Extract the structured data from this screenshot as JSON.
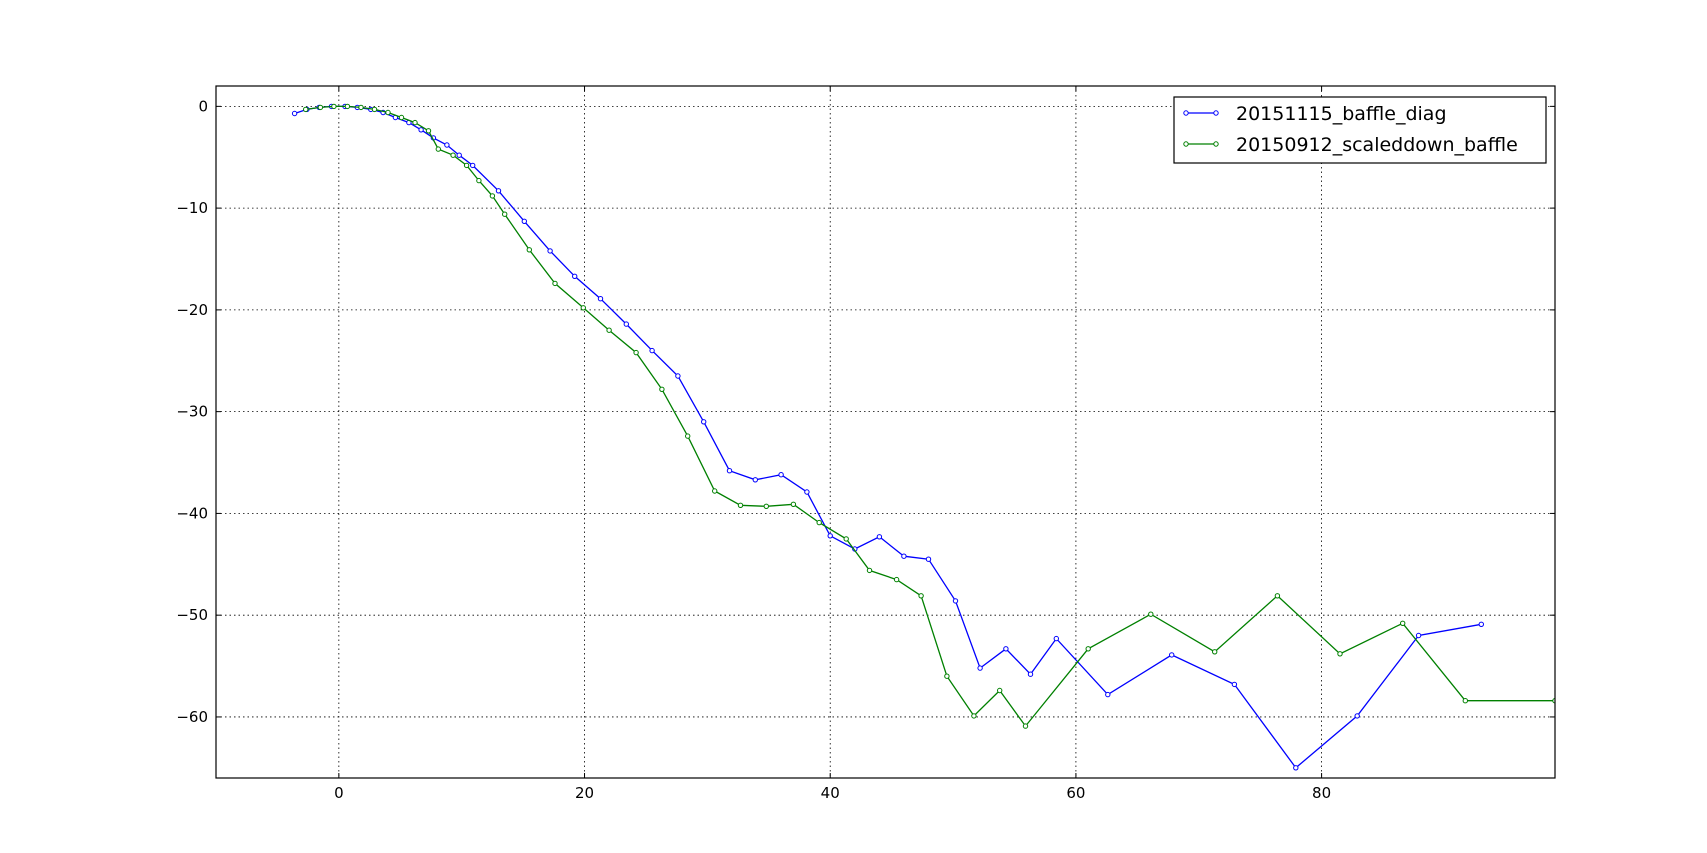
{
  "chart_data": {
    "type": "line",
    "title": "",
    "xlabel": "",
    "ylabel": "",
    "xlim": [
      -10,
      99
    ],
    "ylim": [
      -66,
      2
    ],
    "xticks": [
      0,
      20,
      40,
      60,
      80
    ],
    "yticks": [
      0,
      -10,
      -20,
      -30,
      -40,
      -50,
      -60
    ],
    "xtick_labels": [
      "0",
      "20",
      "40",
      "60",
      "80"
    ],
    "ytick_labels": [
      "0",
      "−10",
      "−20",
      "−30",
      "−40",
      "−50",
      "−60"
    ],
    "grid": true,
    "legend_position": "top-right",
    "series": [
      {
        "name": "20151115_baffle_diag",
        "color": "#0000ff",
        "points": [
          [
            -3.6,
            -0.7
          ],
          [
            -2.6,
            -0.3
          ],
          [
            -1.6,
            -0.1
          ],
          [
            -0.6,
            0.0
          ],
          [
            0.5,
            0.0
          ],
          [
            1.5,
            -0.1
          ],
          [
            2.6,
            -0.3
          ],
          [
            3.6,
            -0.6
          ],
          [
            4.6,
            -1.1
          ],
          [
            5.7,
            -1.6
          ],
          [
            6.7,
            -2.3
          ],
          [
            7.7,
            -3.1
          ],
          [
            8.8,
            -3.8
          ],
          [
            9.8,
            -4.8
          ],
          [
            10.9,
            -5.8
          ],
          [
            13.0,
            -8.3
          ],
          [
            15.1,
            -11.3
          ],
          [
            17.2,
            -14.2
          ],
          [
            19.2,
            -16.7
          ],
          [
            21.3,
            -18.9
          ],
          [
            23.4,
            -21.4
          ],
          [
            25.5,
            -24.0
          ],
          [
            27.6,
            -26.5
          ],
          [
            29.7,
            -31.0
          ],
          [
            31.8,
            -35.8
          ],
          [
            33.9,
            -36.7
          ],
          [
            36.0,
            -36.2
          ],
          [
            38.1,
            -37.9
          ],
          [
            40.0,
            -42.2
          ],
          [
            42.0,
            -43.5
          ],
          [
            44.0,
            -42.3
          ],
          [
            46.0,
            -44.2
          ],
          [
            48.0,
            -44.5
          ],
          [
            50.2,
            -48.6
          ],
          [
            52.2,
            -55.2
          ],
          [
            54.3,
            -53.3
          ],
          [
            56.3,
            -55.8
          ],
          [
            58.4,
            -52.3
          ],
          [
            62.6,
            -57.8
          ],
          [
            67.8,
            -53.9
          ],
          [
            72.9,
            -56.8
          ],
          [
            77.9,
            -65.0
          ],
          [
            82.9,
            -59.9
          ],
          [
            87.9,
            -52.0
          ],
          [
            93.0,
            -50.9
          ]
        ]
      },
      {
        "name": "20150912_scaleddown_baffle",
        "color": "#008000",
        "points": [
          [
            -2.7,
            -0.3
          ],
          [
            -1.5,
            -0.1
          ],
          [
            -0.4,
            0.0
          ],
          [
            0.7,
            0.0
          ],
          [
            1.8,
            -0.1
          ],
          [
            2.9,
            -0.3
          ],
          [
            4.0,
            -0.6
          ],
          [
            5.1,
            -1.1
          ],
          [
            6.2,
            -1.6
          ],
          [
            7.3,
            -2.4
          ],
          [
            8.1,
            -4.2
          ],
          [
            9.3,
            -4.8
          ],
          [
            10.4,
            -5.8
          ],
          [
            11.4,
            -7.3
          ],
          [
            12.5,
            -8.8
          ],
          [
            13.5,
            -10.6
          ],
          [
            15.5,
            -14.1
          ],
          [
            17.6,
            -17.4
          ],
          [
            19.9,
            -19.8
          ],
          [
            22.0,
            -22.0
          ],
          [
            24.2,
            -24.2
          ],
          [
            26.3,
            -27.8
          ],
          [
            28.4,
            -32.4
          ],
          [
            30.6,
            -37.8
          ],
          [
            32.7,
            -39.2
          ],
          [
            34.8,
            -39.3
          ],
          [
            37.0,
            -39.1
          ],
          [
            39.1,
            -40.9
          ],
          [
            41.3,
            -42.5
          ],
          [
            43.2,
            -45.6
          ],
          [
            45.4,
            -46.5
          ],
          [
            47.4,
            -48.1
          ],
          [
            49.5,
            -56.0
          ],
          [
            51.7,
            -59.9
          ],
          [
            53.8,
            -57.4
          ],
          [
            55.9,
            -60.9
          ],
          [
            61.0,
            -53.3
          ],
          [
            66.1,
            -49.9
          ],
          [
            71.3,
            -53.6
          ],
          [
            76.4,
            -48.1
          ],
          [
            81.5,
            -53.8
          ],
          [
            86.6,
            -50.8
          ],
          [
            91.7,
            -58.4
          ],
          [
            99.0,
            -58.4
          ]
        ]
      }
    ]
  }
}
